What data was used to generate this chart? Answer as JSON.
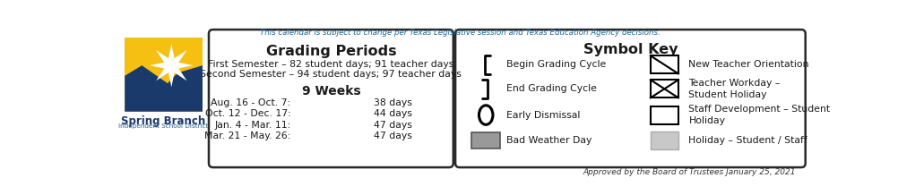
{
  "top_note": "This calendar is subject to change per Texas Legislative session and Texas Education Agency decisions.",
  "grading_title": "Grading Periods",
  "semester1": "First Semester – 82 student days; 91 teacher days",
  "semester2": "Second Semester – 94 student days; 97 teacher days",
  "nine_weeks_title": "9 Weeks",
  "nine_weeks": [
    [
      "Aug. 16 - Oct. 7:",
      "38 days"
    ],
    [
      "Oct. 12 - Dec. 17:",
      "44 days"
    ],
    [
      "Jan. 4 - Mar. 11:",
      "47 days"
    ],
    [
      "Mar. 21 - May. 26:",
      "47 days"
    ]
  ],
  "symbol_key_title": "Symbol Key",
  "sym_left_labels": [
    "Begin Grading Cycle",
    "End Grading Cycle",
    "Early Dismissal",
    "Bad Weather Day"
  ],
  "sym_right_labels": [
    "New Teacher Orientation",
    "Teacher Workday –\nStudent Holiday",
    "Staff Development – Student\nHoliday",
    "Holiday – Student / Staff"
  ],
  "approved_text": "Approved by the Board of Trustees January 25, 2021",
  "bg_color": "#ffffff",
  "box_border_color": "#2a2a2a",
  "note_color": "#1a6699",
  "gray_dark": "#999999",
  "gray_light": "#c8c8c8",
  "spring_branch_yellow": "#f5c012",
  "spring_branch_blue": "#1a3a6b",
  "spring_branch_blue2": "#2a5c8a",
  "text_color": "#1a1a1a"
}
